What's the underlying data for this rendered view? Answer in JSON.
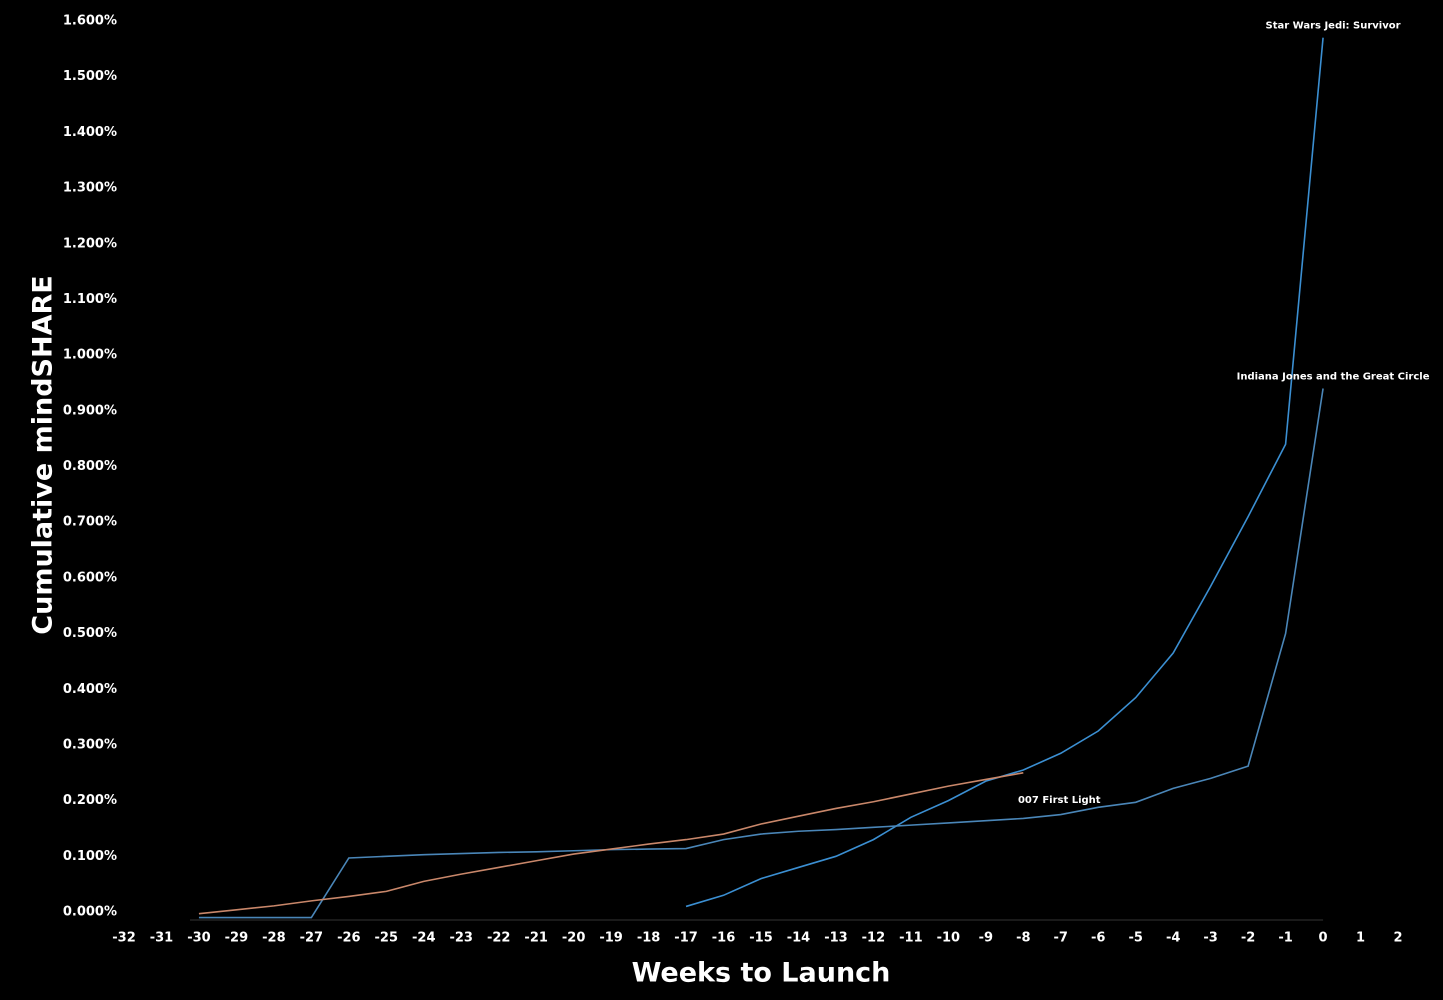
{
  "chart_data": {
    "type": "line",
    "xlabel": "Weeks to Launch",
    "ylabel": "Cumulative mindSHARE",
    "xlim": [
      -32,
      2
    ],
    "xticks": [
      -32,
      -31,
      -30,
      -29,
      -28,
      -27,
      -26,
      -25,
      -24,
      -23,
      -22,
      -21,
      -20,
      -19,
      -18,
      -17,
      -16,
      -15,
      -14,
      -13,
      -12,
      -11,
      -10,
      -9,
      -8,
      -7,
      -6,
      -5,
      -4,
      -3,
      -2,
      -1,
      0,
      1,
      2
    ],
    "ylim": [
      0,
      1.6
    ],
    "yticks": [
      {
        "value": 0,
        "label": "0.000%"
      },
      {
        "value": 0.1,
        "label": "0.100%"
      },
      {
        "value": 0.2,
        "label": "0.200%"
      },
      {
        "value": 0.3,
        "label": "0.300%"
      },
      {
        "value": 0.4,
        "label": "0.400%"
      },
      {
        "value": 0.5,
        "label": "0.500%"
      },
      {
        "value": 0.6,
        "label": "0.600%"
      },
      {
        "value": 0.7,
        "label": "0.700%"
      },
      {
        "value": 0.8,
        "label": "0.800%"
      },
      {
        "value": 0.9,
        "label": "0.900%"
      },
      {
        "value": 1.0,
        "label": "1.000%"
      },
      {
        "value": 1.1,
        "label": "1.100%"
      },
      {
        "value": 1.2,
        "label": "1.200%"
      },
      {
        "value": 1.3,
        "label": "1.300%"
      },
      {
        "value": 1.4,
        "label": "1.400%"
      },
      {
        "value": 1.5,
        "label": "1.500%"
      },
      {
        "value": 1.6,
        "label": "1.600%"
      }
    ],
    "series": [
      {
        "name": "Star Wars Jedi: Survivor",
        "color": "#3b8fd2",
        "x": [
          -17,
          -16,
          -15,
          -14,
          -13,
          -12,
          -11,
          -10,
          -9,
          -8,
          -7,
          -6,
          -5,
          -4,
          -3,
          -2,
          -1,
          0
        ],
        "values": [
          0.01,
          0.03,
          0.06,
          0.08,
          0.1,
          0.13,
          0.17,
          0.2,
          0.235,
          0.255,
          0.285,
          0.325,
          0.385,
          0.465,
          0.585,
          0.71,
          0.84,
          1.57
        ]
      },
      {
        "name": "Indiana Jones and the Great Circle",
        "color": "#4a86b8",
        "x": [
          -30,
          -29,
          -28,
          -27,
          -26,
          -25,
          -24,
          -23,
          -22,
          -21,
          -20,
          -19,
          -18,
          -17,
          -16,
          -15,
          -14,
          -13,
          -12,
          -11,
          -10,
          -9,
          -8,
          -7,
          -6,
          -5,
          -4,
          -3,
          -2,
          -1,
          0
        ],
        "values": [
          -0.01,
          -0.01,
          -0.01,
          -0.01,
          0.097,
          0.1,
          0.103,
          0.105,
          0.107,
          0.108,
          0.11,
          0.112,
          0.113,
          0.114,
          0.13,
          0.14,
          0.145,
          0.148,
          0.152,
          0.156,
          0.16,
          0.164,
          0.168,
          0.175,
          0.188,
          0.197,
          0.222,
          0.24,
          0.262,
          0.5,
          0.94
        ]
      },
      {
        "name": "007 First Light",
        "color": "#c9876a",
        "x": [
          -30,
          -29,
          -28,
          -27,
          -26,
          -25,
          -24,
          -23,
          -22,
          -21,
          -20,
          -19,
          -18,
          -17,
          -16,
          -15,
          -14,
          -13,
          -12,
          -11,
          -10,
          -9,
          -8
        ],
        "values": [
          -0.003,
          0.004,
          0.011,
          0.02,
          0.028,
          0.037,
          0.055,
          0.068,
          0.08,
          0.092,
          0.104,
          0.113,
          0.122,
          0.13,
          0.14,
          0.158,
          0.172,
          0.186,
          0.198,
          0.212,
          0.226,
          0.238,
          0.25
        ]
      }
    ]
  }
}
